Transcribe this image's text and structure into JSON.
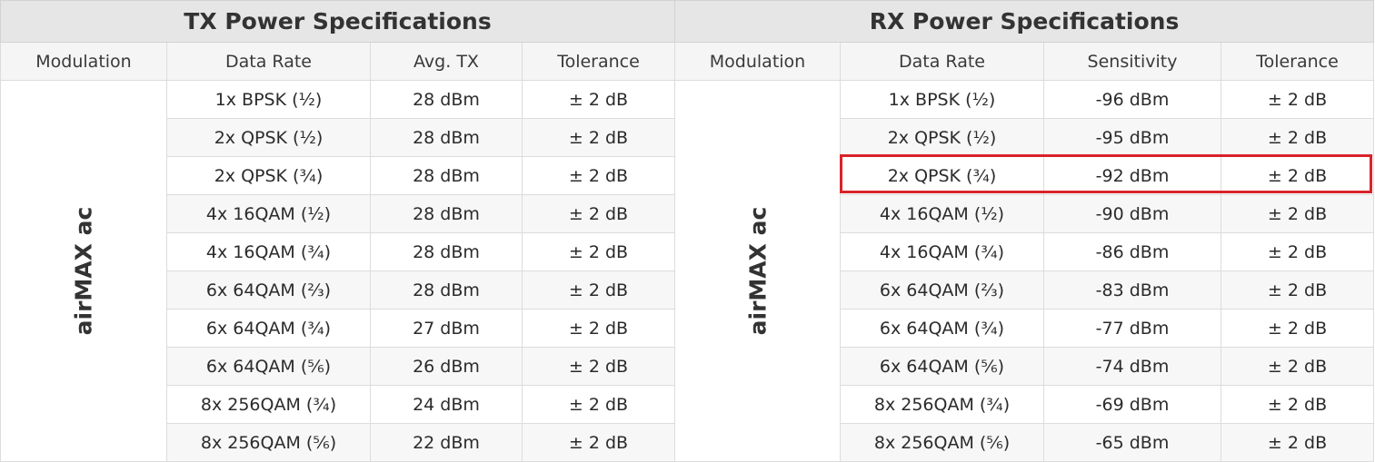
{
  "tx": {
    "title": "TX Power Specifications",
    "headers": [
      "Modulation",
      "Data Rate",
      "Avg. TX",
      "Tolerance"
    ],
    "modulation_group": "airMAX ac",
    "rows": [
      {
        "rate": "1x BPSK (½)",
        "value": "28 dBm",
        "tolerance": "± 2 dB"
      },
      {
        "rate": "2x QPSK (½)",
        "value": "28 dBm",
        "tolerance": "± 2 dB"
      },
      {
        "rate": "2x QPSK (¾)",
        "value": "28 dBm",
        "tolerance": "± 2 dB"
      },
      {
        "rate": "4x 16QAM (½)",
        "value": "28 dBm",
        "tolerance": "± 2 dB"
      },
      {
        "rate": "4x 16QAM (¾)",
        "value": "28 dBm",
        "tolerance": "± 2 dB"
      },
      {
        "rate": "6x 64QAM (⅔)",
        "value": "28 dBm",
        "tolerance": "± 2 dB"
      },
      {
        "rate": "6x 64QAM (¾)",
        "value": "27 dBm",
        "tolerance": "± 2 dB"
      },
      {
        "rate": "6x 64QAM (⅚)",
        "value": "26 dBm",
        "tolerance": "± 2 dB"
      },
      {
        "rate": "8x 256QAM (¾)",
        "value": "24 dBm",
        "tolerance": "± 2 dB"
      },
      {
        "rate": "8x 256QAM (⅚)",
        "value": "22 dBm",
        "tolerance": "± 2 dB"
      }
    ]
  },
  "rx": {
    "title": "RX Power Specifications",
    "headers": [
      "Modulation",
      "Data Rate",
      "Sensitivity",
      "Tolerance"
    ],
    "modulation_group": "airMAX ac",
    "highlighted_row": 2,
    "rows": [
      {
        "rate": "1x BPSK (½)",
        "value": "-96 dBm",
        "tolerance": "± 2 dB"
      },
      {
        "rate": "2x QPSK (½)",
        "value": "-95 dBm",
        "tolerance": "± 2 dB"
      },
      {
        "rate": "2x QPSK (¾)",
        "value": "-92 dBm",
        "tolerance": "± 2 dB"
      },
      {
        "rate": "4x 16QAM (½)",
        "value": "-90 dBm",
        "tolerance": "± 2 dB"
      },
      {
        "rate": "4x 16QAM (¾)",
        "value": "-86 dBm",
        "tolerance": "± 2 dB"
      },
      {
        "rate": "6x 64QAM (⅔)",
        "value": "-83 dBm",
        "tolerance": "± 2 dB"
      },
      {
        "rate": "6x 64QAM (¾)",
        "value": "-77 dBm",
        "tolerance": "± 2 dB"
      },
      {
        "rate": "6x 64QAM (⅚)",
        "value": "-74 dBm",
        "tolerance": "± 2 dB"
      },
      {
        "rate": "8x 256QAM (¾)",
        "value": "-69 dBm",
        "tolerance": "± 2 dB"
      },
      {
        "rate": "8x 256QAM (⅚)",
        "value": "-65 dBm",
        "tolerance": "± 2 dB"
      }
    ]
  },
  "colors": {
    "title_bg": "#e6e6e6",
    "header_bg": "#f5f5f5",
    "stripe_bg": "#f7f7f7",
    "border": "#dcdcdc",
    "highlight": "#d9232a"
  }
}
